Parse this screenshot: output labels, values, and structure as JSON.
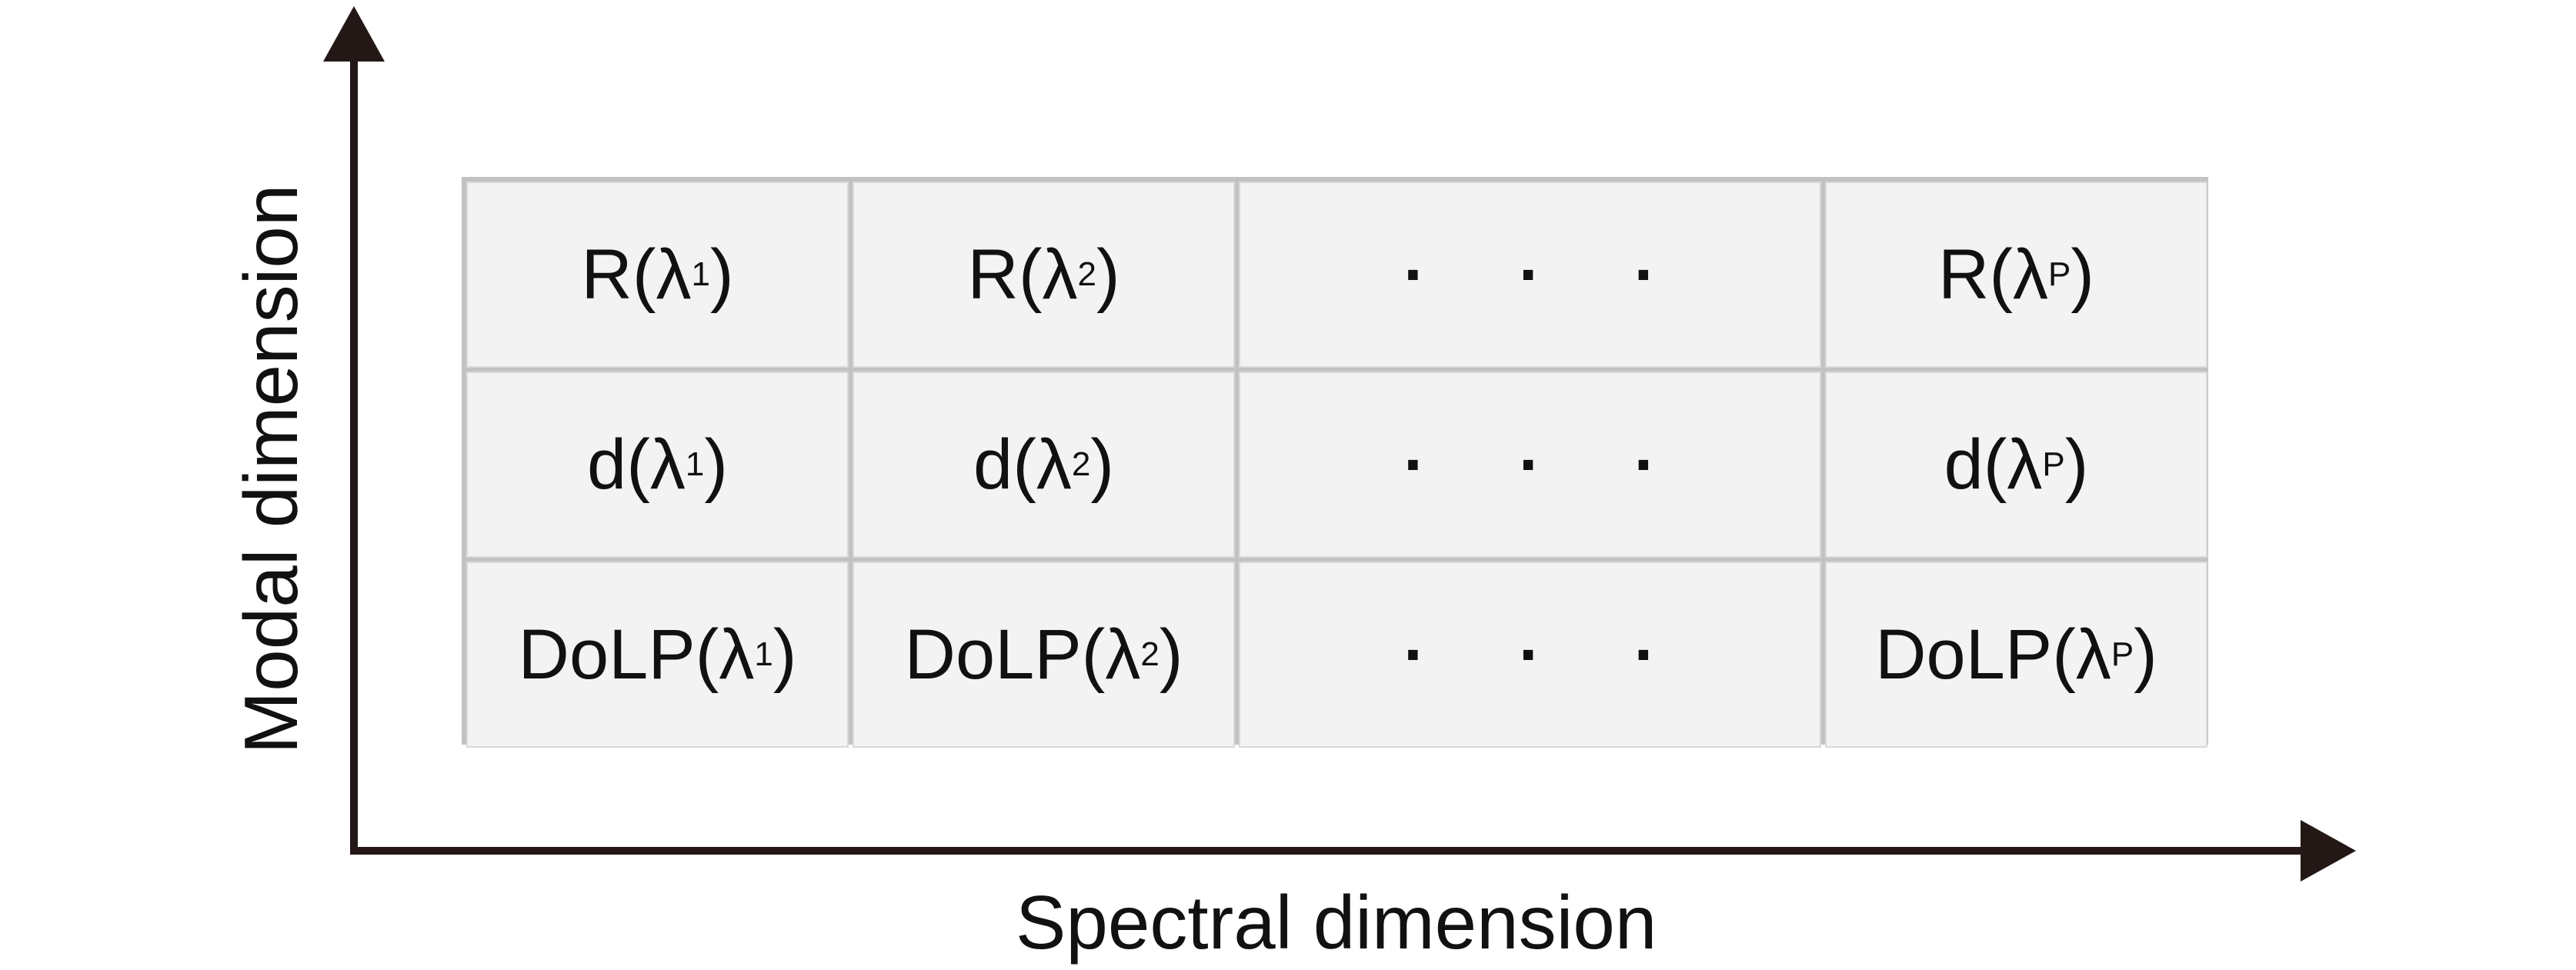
{
  "axes": {
    "x_label": "Spectral dimension",
    "y_label": "Modal dimension",
    "color": "#231815"
  },
  "grid": {
    "cell_fill": "#f3f3f3",
    "border_color": "#c2c2c2",
    "ellipsis": "· · ·",
    "rows": [
      {
        "name": "R",
        "cells": [
          {
            "base": "R(λ",
            "sub": "1",
            "close": ")"
          },
          {
            "base": "R(λ",
            "sub": "2",
            "close": ")"
          },
          {
            "ellipsis": true
          },
          {
            "base": "R(λ",
            "sub": "P",
            "close": ")"
          }
        ]
      },
      {
        "name": "d",
        "cells": [
          {
            "base": "d(λ",
            "sub": "1",
            "close": ")"
          },
          {
            "base": "d(λ",
            "sub": "2",
            "close": ")"
          },
          {
            "ellipsis": true
          },
          {
            "base": "d(λ",
            "sub": "P",
            "close": ")"
          }
        ]
      },
      {
        "name": "DoLP",
        "cells": [
          {
            "base": "DoLP(λ",
            "sub": "1",
            "close": ")"
          },
          {
            "base": "DoLP(λ",
            "sub": "2",
            "close": ")"
          },
          {
            "ellipsis": true
          },
          {
            "base": "DoLP(λ",
            "sub": "P",
            "close": ")"
          }
        ]
      }
    ]
  }
}
